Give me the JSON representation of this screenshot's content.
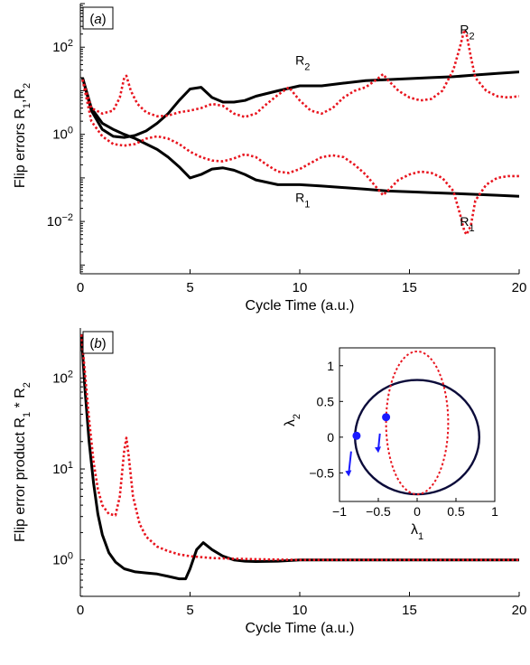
{
  "chart_data": [
    {
      "type": "line",
      "panel_label": "(a)",
      "xlabel": "Cycle Time (a.u.)",
      "ylabel": "Flip errors R",
      "ylabel_sub1": "1",
      "ylabel_mid": ",R",
      "ylabel_sub2": "2",
      "xlim": [
        0,
        20
      ],
      "ylim_log10": [
        -3.2,
        3
      ],
      "y_scale": "log",
      "xticks": [
        0,
        5,
        10,
        15,
        20
      ],
      "yticks": [
        {
          "exp": 2,
          "label": "10",
          "sup": "2"
        },
        {
          "exp": 0,
          "label": "10",
          "sup": "0"
        },
        {
          "exp": -2,
          "label": "10",
          "sup": "−2"
        }
      ],
      "series": [
        {
          "style": "solid",
          "color": "#000000",
          "x": [
            0.1,
            0.5,
            1,
            1.5,
            2,
            2.5,
            3,
            3.5,
            4,
            4.5,
            5,
            5.5,
            6,
            6.5,
            7,
            7.5,
            8,
            9,
            10,
            11,
            12,
            13,
            14,
            15,
            16,
            17,
            18,
            19,
            20
          ],
          "y": [
            20,
            3.5,
            1.3,
            0.9,
            0.85,
            0.95,
            1.2,
            1.8,
            3.0,
            6.0,
            11,
            12,
            7,
            5.5,
            5.5,
            6,
            7.5,
            10,
            13,
            13,
            15,
            17,
            18,
            19,
            20,
            21,
            23,
            25,
            27
          ]
        },
        {
          "style": "solid",
          "color": "#000000",
          "x": [
            0.1,
            0.5,
            1,
            1.5,
            2,
            2.5,
            3,
            3.5,
            4,
            4.5,
            5,
            5.5,
            6,
            6.5,
            7,
            7.5,
            8,
            9,
            10,
            11,
            12,
            13,
            14,
            15,
            16,
            17,
            18,
            19,
            20
          ],
          "y": [
            20,
            4,
            1.8,
            1.3,
            1.0,
            0.8,
            0.6,
            0.45,
            0.3,
            0.18,
            0.1,
            0.12,
            0.16,
            0.17,
            0.15,
            0.12,
            0.09,
            0.07,
            0.07,
            0.065,
            0.06,
            0.055,
            0.05,
            0.048,
            0.046,
            0.044,
            0.042,
            0.04,
            0.038
          ]
        },
        {
          "style": "dotted",
          "color": "#e8141e",
          "x": [
            0.1,
            0.5,
            1,
            1.5,
            1.8,
            2.0,
            2.1,
            2.3,
            2.6,
            3,
            3.5,
            4,
            4.5,
            5,
            5.5,
            6,
            6.5,
            7,
            7.5,
            8,
            8.5,
            9,
            9.5,
            10,
            10.5,
            11,
            11.5,
            12,
            12.5,
            13,
            13.5,
            13.8,
            14,
            14.5,
            15,
            15.5,
            16,
            16.5,
            17,
            17.3,
            17.5,
            17.6,
            17.8,
            18,
            18.5,
            19,
            19.5,
            20
          ],
          "y": [
            18,
            4,
            3.0,
            3.5,
            7,
            20,
            22,
            10,
            5,
            3.2,
            2.6,
            2.7,
            3.2,
            3.5,
            4,
            5,
            4.5,
            3,
            2.5,
            3,
            5,
            8,
            12,
            6,
            3.5,
            3,
            4,
            7,
            10,
            12,
            18,
            24,
            18,
            10,
            7,
            6,
            6.5,
            10,
            30,
            100,
            250,
            200,
            60,
            20,
            10,
            7.5,
            7,
            7.5
          ]
        },
        {
          "style": "dotted",
          "color": "#e8141e",
          "x": [
            0.1,
            0.5,
            1,
            1.5,
            2,
            2.5,
            3,
            3.5,
            4,
            4.5,
            5,
            5.5,
            6,
            6.5,
            7,
            7.5,
            8,
            8.5,
            9,
            9.5,
            10,
            10.5,
            11,
            11.5,
            12,
            12.5,
            13,
            13.5,
            13.8,
            14,
            14.5,
            15,
            15.5,
            16,
            16.5,
            17,
            17.3,
            17.5,
            17.6,
            17.8,
            18,
            18.5,
            19,
            19.5,
            20
          ],
          "y": [
            18,
            2,
            0.9,
            0.6,
            0.55,
            0.6,
            0.8,
            0.9,
            0.8,
            0.6,
            0.4,
            0.3,
            0.25,
            0.24,
            0.28,
            0.35,
            0.3,
            0.2,
            0.14,
            0.13,
            0.16,
            0.22,
            0.3,
            0.33,
            0.3,
            0.2,
            0.12,
            0.06,
            0.04,
            0.05,
            0.09,
            0.12,
            0.14,
            0.13,
            0.1,
            0.05,
            0.015,
            0.006,
            0.005,
            0.008,
            0.03,
            0.07,
            0.1,
            0.11,
            0.11
          ]
        }
      ],
      "annotations": [
        {
          "text": "R",
          "sub": "2",
          "x": 9.8,
          "y": 40
        },
        {
          "text": "R",
          "sub": "1",
          "x": 9.8,
          "y": 0.028
        },
        {
          "text": "R",
          "sub": "2",
          "x": 17.3,
          "y": 200
        },
        {
          "text": "R",
          "sub": "1",
          "x": 17.3,
          "y": 0.008
        }
      ]
    },
    {
      "type": "line",
      "panel_label": "(b)",
      "xlabel": "Cycle Time (a.u.)",
      "ylabel": "Flip error product   R",
      "ylabel_sub1": "1",
      "ylabel_mid": " * R",
      "ylabel_sub2": "2",
      "xlim": [
        0,
        20
      ],
      "ylim_log10": [
        -0.4,
        2.55
      ],
      "y_scale": "log",
      "xticks": [
        0,
        5,
        10,
        15,
        20
      ],
      "yticks": [
        {
          "exp": 2,
          "label": "10",
          "sup": "2"
        },
        {
          "exp": 1,
          "label": "10",
          "sup": "1"
        },
        {
          "exp": 0,
          "label": "10",
          "sup": "0"
        }
      ],
      "series": [
        {
          "style": "solid",
          "color": "#000000",
          "x": [
            0.05,
            0.2,
            0.4,
            0.6,
            0.8,
            1.0,
            1.3,
            1.6,
            2.0,
            2.5,
            3,
            3.5,
            4,
            4.5,
            4.8,
            5.0,
            5.3,
            5.6,
            6,
            6.5,
            7,
            7.5,
            8,
            9,
            10,
            12,
            15,
            20
          ],
          "y": [
            300,
            80,
            20,
            7,
            3.2,
            1.9,
            1.2,
            0.95,
            0.8,
            0.74,
            0.72,
            0.7,
            0.66,
            0.62,
            0.62,
            0.8,
            1.3,
            1.55,
            1.3,
            1.1,
            1.0,
            0.97,
            0.96,
            0.97,
            1.0,
            1.0,
            1.0,
            1.0
          ]
        },
        {
          "style": "dotted",
          "color": "#e8141e",
          "x": [
            0.05,
            0.2,
            0.4,
            0.6,
            0.8,
            1.0,
            1.3,
            1.6,
            1.8,
            2.0,
            2.1,
            2.2,
            2.4,
            2.7,
            3,
            3.5,
            4,
            4.5,
            5,
            6,
            7,
            8,
            9,
            10,
            12,
            15,
            20
          ],
          "y": [
            300,
            120,
            35,
            12,
            6,
            4,
            3.2,
            3.1,
            5,
            16,
            22,
            14,
            5,
            2.5,
            1.8,
            1.4,
            1.25,
            1.15,
            1.1,
            1.05,
            1.03,
            1.02,
            1.01,
            1.0,
            1.0,
            1.0,
            1.0
          ]
        }
      ]
    },
    {
      "type": "line",
      "panel": "inset",
      "xlabel": "λ",
      "xlabel_sub": "1",
      "ylabel": "λ",
      "ylabel_sub": "2",
      "xlim": [
        -1,
        1
      ],
      "ylim": [
        -0.9,
        1.25
      ],
      "xticks": [
        {
          "v": -1,
          "label": "−1"
        },
        {
          "v": -0.5,
          "label": "−0.5"
        },
        {
          "v": 0,
          "label": "0"
        },
        {
          "v": 0.5,
          "label": "0.5"
        },
        {
          "v": 1,
          "label": "1"
        }
      ],
      "yticks": [
        {
          "v": 1,
          "label": "1"
        },
        {
          "v": 0.5,
          "label": "0.5"
        },
        {
          "v": 0,
          "label": "0"
        },
        {
          "v": -0.5,
          "label": "−0.5"
        }
      ],
      "series": [
        {
          "shape": "ellipse",
          "style": "solid",
          "color": "#0b0b3a",
          "center": [
            0,
            0
          ],
          "radii": [
            0.8,
            0.8
          ]
        },
        {
          "shape": "ellipse",
          "style": "dotted",
          "color": "#e8141e",
          "center": [
            0,
            0.2
          ],
          "radii": [
            0.4,
            1.0
          ]
        }
      ],
      "markers": [
        {
          "x": -0.78,
          "y": 0.02,
          "color": "#1a1aff"
        },
        {
          "x": -0.4,
          "y": 0.28,
          "color": "#1a1aff"
        }
      ],
      "arrows": [
        {
          "x1": -0.85,
          "y1": -0.2,
          "x2": -0.88,
          "y2": -0.55,
          "color": "#1a1aff"
        },
        {
          "x1": -0.48,
          "y1": 0.05,
          "x2": -0.5,
          "y2": -0.22,
          "color": "#1a1aff"
        }
      ]
    }
  ]
}
